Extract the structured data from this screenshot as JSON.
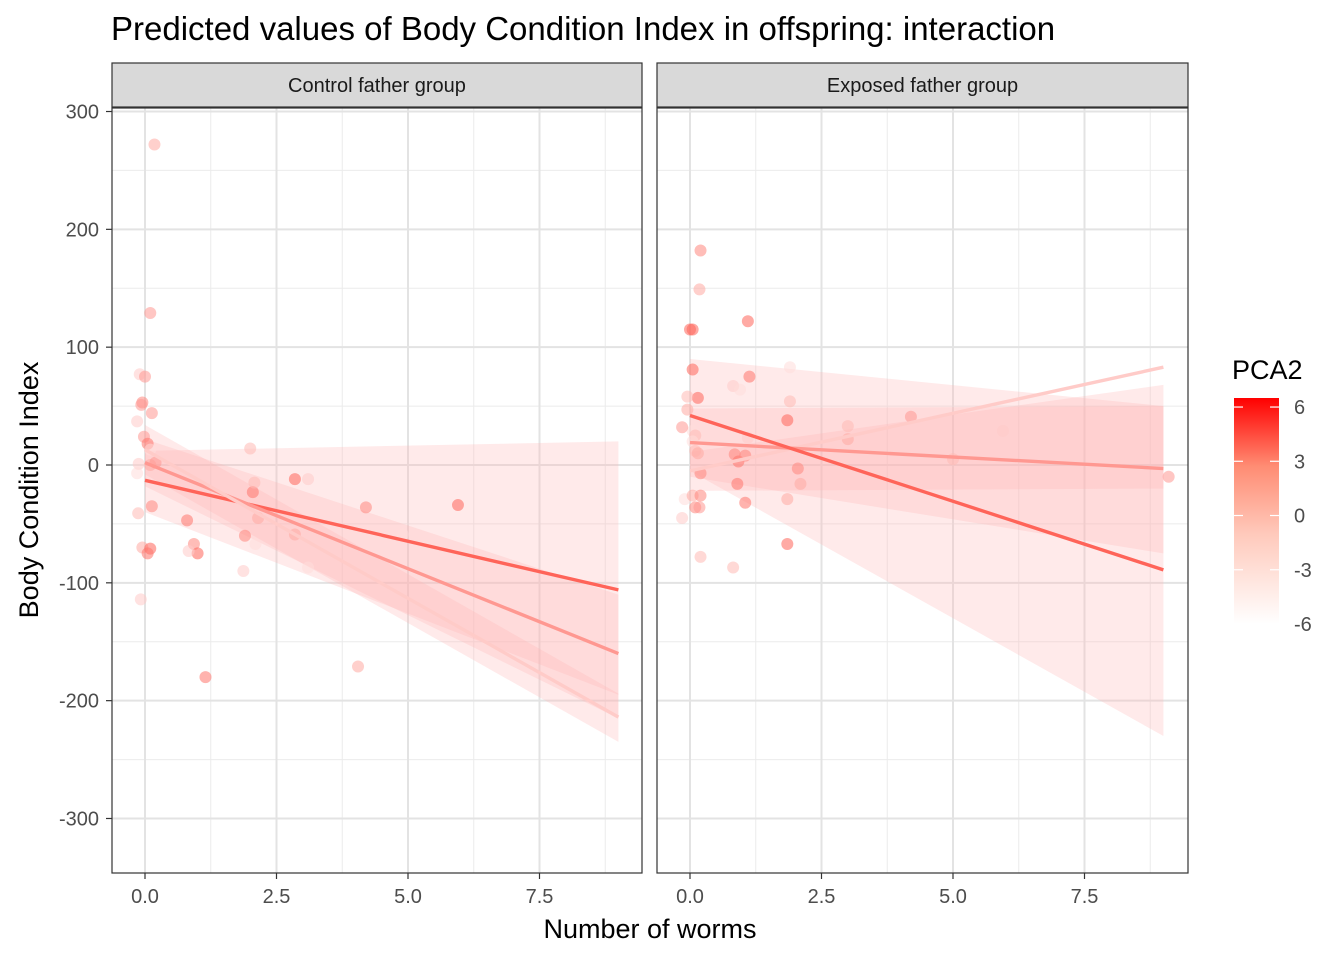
{
  "chart_data": {
    "type": "scatter",
    "title": "Predicted values of Body Condition Index in offspring: interaction",
    "xlabel": "Number of worms",
    "ylabel": "Body Condition Index",
    "xlim": [
      -0.25,
      9.35
    ],
    "ylim": [
      -345,
      310
    ],
    "x_ticks": [
      0,
      2.5,
      5,
      7.5
    ],
    "x_tick_labels": [
      "0.0",
      "2.5",
      "5.0",
      "7.5"
    ],
    "y_ticks": [
      300,
      200,
      100,
      0,
      -100,
      -200,
      -300
    ],
    "y_tick_labels": [
      "300",
      "200",
      "100",
      "0",
      "-100",
      "-200",
      "-300"
    ],
    "grid": true,
    "legend": {
      "title": "PCA2",
      "position": "right",
      "type": "gradient",
      "min": -6,
      "max": 6.5,
      "ticks": [
        6,
        3,
        0,
        -3,
        -6
      ],
      "tick_labels": [
        "6",
        "3",
        "0",
        "-3",
        "-6"
      ],
      "color_low": "#ffffff",
      "color_high": "#ff0000"
    },
    "colors": {
      "panel_border": "#333333",
      "strip_bg": "#d9d9d9",
      "grid": "#ebebeb",
      "band": "#ffd6d6"
    },
    "panels": [
      {
        "strip": "Control father group",
        "points": [
          {
            "x": 0.18,
            "y": 272,
            "c": -1
          },
          {
            "x": 0.1,
            "y": 129,
            "c": 0
          },
          {
            "x": -0.1,
            "y": 77,
            "c": -3
          },
          {
            "x": 0.0,
            "y": 75,
            "c": 0
          },
          {
            "x": -0.05,
            "y": 53,
            "c": 1
          },
          {
            "x": -0.07,
            "y": 51,
            "c": 0
          },
          {
            "x": 0.13,
            "y": 44,
            "c": 0
          },
          {
            "x": -0.15,
            "y": 37,
            "c": -3
          },
          {
            "x": -0.02,
            "y": 24,
            "c": 0
          },
          {
            "x": 0.05,
            "y": 18,
            "c": 2
          },
          {
            "x": 0.1,
            "y": 13,
            "c": -4
          },
          {
            "x": -0.12,
            "y": 1,
            "c": -3
          },
          {
            "x": 0.1,
            "y": 0,
            "c": -1
          },
          {
            "x": 0.2,
            "y": 2,
            "c": 0
          },
          {
            "x": -0.15,
            "y": -7,
            "c": -4
          },
          {
            "x": 0.13,
            "y": -35,
            "c": 1
          },
          {
            "x": -0.13,
            "y": -41,
            "c": -2
          },
          {
            "x": -0.05,
            "y": -70,
            "c": -1
          },
          {
            "x": 0.1,
            "y": -71,
            "c": 3
          },
          {
            "x": 0.05,
            "y": -75,
            "c": 2
          },
          {
            "x": -0.08,
            "y": -114,
            "c": -3
          },
          {
            "x": 0.8,
            "y": -47,
            "c": 2
          },
          {
            "x": 0.93,
            "y": -67,
            "c": 1
          },
          {
            "x": 1.0,
            "y": -75,
            "c": 3
          },
          {
            "x": 0.83,
            "y": -73,
            "c": -3
          },
          {
            "x": 1.15,
            "y": -180,
            "c": 2
          },
          {
            "x": 2.0,
            "y": 14,
            "c": -2
          },
          {
            "x": 2.05,
            "y": -23,
            "c": 2
          },
          {
            "x": 2.08,
            "y": -15,
            "c": -2
          },
          {
            "x": 2.15,
            "y": -45,
            "c": -1
          },
          {
            "x": 1.9,
            "y": -60,
            "c": 1
          },
          {
            "x": 2.1,
            "y": -67,
            "c": -4
          },
          {
            "x": 1.87,
            "y": -90,
            "c": -3
          },
          {
            "x": 2.85,
            "y": -12,
            "c": 3
          },
          {
            "x": 3.1,
            "y": -12,
            "c": -3
          },
          {
            "x": 2.85,
            "y": -59,
            "c": -1
          },
          {
            "x": 3.1,
            "y": -87,
            "c": -4
          },
          {
            "x": 4.2,
            "y": -36,
            "c": 1
          },
          {
            "x": 4.05,
            "y": -171,
            "c": -1
          },
          {
            "x": 4.9,
            "y": -59,
            "c": -4
          },
          {
            "x": 5.95,
            "y": -34,
            "c": 3
          }
        ],
        "lines": [
          {
            "pca2": 3,
            "x": [
              0,
              9
            ],
            "y": [
              -13,
              -106
            ],
            "band_low": [
              -40,
              -195
            ],
            "band_high": [
              12,
              20
            ]
          },
          {
            "pca2": 0,
            "x": [
              0,
              9
            ],
            "y": [
              2,
              -160
            ],
            "band_low": [
              -18,
              -215
            ],
            "band_high": [
              22,
              -110
            ]
          },
          {
            "pca2": -3,
            "x": [
              0,
              9
            ],
            "y": [
              13,
              -214
            ],
            "band_low": [
              -8,
              -235
            ],
            "band_high": [
              34,
              -194
            ]
          }
        ]
      },
      {
        "strip": "Exposed father group",
        "points": [
          {
            "x": 0.2,
            "y": 182,
            "c": 1
          },
          {
            "x": 0.18,
            "y": 149,
            "c": -1
          },
          {
            "x": 0.0,
            "y": 115,
            "c": 3
          },
          {
            "x": 0.05,
            "y": 115,
            "c": 3
          },
          {
            "x": 0.05,
            "y": 81,
            "c": 3
          },
          {
            "x": 0.15,
            "y": 57,
            "c": 3
          },
          {
            "x": -0.05,
            "y": 58,
            "c": -2
          },
          {
            "x": -0.05,
            "y": 47,
            "c": -1
          },
          {
            "x": 0.05,
            "y": 29,
            "c": -4
          },
          {
            "x": -0.15,
            "y": 32,
            "c": 0
          },
          {
            "x": 0.1,
            "y": 25,
            "c": -2
          },
          {
            "x": 0.05,
            "y": 20,
            "c": -4
          },
          {
            "x": 0.1,
            "y": 12,
            "c": -2
          },
          {
            "x": 0.15,
            "y": 10,
            "c": -1
          },
          {
            "x": 0.2,
            "y": -7,
            "c": 1
          },
          {
            "x": -0.1,
            "y": -29,
            "c": -4
          },
          {
            "x": 0.05,
            "y": -26,
            "c": -1
          },
          {
            "x": 0.2,
            "y": -26,
            "c": 1
          },
          {
            "x": 0.1,
            "y": -36,
            "c": 1
          },
          {
            "x": 0.18,
            "y": -36,
            "c": 0
          },
          {
            "x": -0.15,
            "y": -45,
            "c": -3
          },
          {
            "x": 0.2,
            "y": -78,
            "c": -2
          },
          {
            "x": 1.1,
            "y": 122,
            "c": 3
          },
          {
            "x": 1.13,
            "y": 75,
            "c": 2
          },
          {
            "x": 0.82,
            "y": 67,
            "c": -3
          },
          {
            "x": 0.95,
            "y": 64,
            "c": -4
          },
          {
            "x": 1.1,
            "y": 23,
            "c": -3
          },
          {
            "x": 0.85,
            "y": 9,
            "c": 1
          },
          {
            "x": 0.92,
            "y": 3,
            "c": 2
          },
          {
            "x": 1.05,
            "y": 8,
            "c": 1
          },
          {
            "x": 0.9,
            "y": -16,
            "c": 2
          },
          {
            "x": 1.05,
            "y": -32,
            "c": 2
          },
          {
            "x": 0.82,
            "y": -87,
            "c": -2
          },
          {
            "x": 1.9,
            "y": 83,
            "c": -4
          },
          {
            "x": 1.9,
            "y": 54,
            "c": -2
          },
          {
            "x": 1.85,
            "y": 38,
            "c": 3
          },
          {
            "x": 2.05,
            "y": -3,
            "c": 1
          },
          {
            "x": 2.1,
            "y": -16,
            "c": -1
          },
          {
            "x": 1.85,
            "y": -29,
            "c": -1
          },
          {
            "x": 1.85,
            "y": -67,
            "c": 3
          },
          {
            "x": 3.0,
            "y": 33,
            "c": -2
          },
          {
            "x": 3.0,
            "y": 22,
            "c": -1
          },
          {
            "x": 4.2,
            "y": 41,
            "c": 0
          },
          {
            "x": 5.0,
            "y": 5,
            "c": -2
          },
          {
            "x": 5.95,
            "y": 29,
            "c": -3
          },
          {
            "x": 9.1,
            "y": -10,
            "c": 0
          }
        ],
        "lines": [
          {
            "pca2": -3,
            "x": [
              0,
              9
            ],
            "y": [
              -5,
              83
            ],
            "band_low": [
              -22,
              -20
            ],
            "band_high": [
              11,
              68
            ]
          },
          {
            "pca2": 0,
            "x": [
              0,
              9
            ],
            "y": [
              19,
              -3
            ],
            "band_low": [
              -10,
              -75
            ],
            "band_high": [
              48,
              50
            ]
          },
          {
            "pca2": 3,
            "x": [
              0,
              9
            ],
            "y": [
              42,
              -89
            ],
            "band_low": [
              -5,
              -230
            ],
            "band_high": [
              90,
              50
            ]
          }
        ]
      }
    ]
  }
}
